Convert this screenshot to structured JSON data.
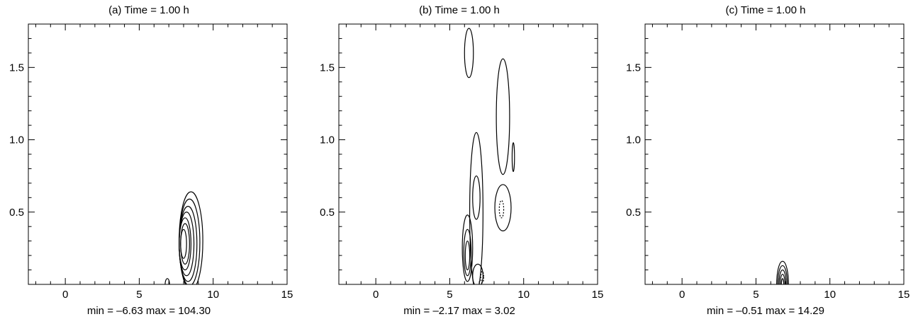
{
  "panels": [
    {
      "title": "(a) Time = 1.00 h",
      "footer": "min = –6.63 max = 104.30"
    },
    {
      "title": "(b) Time = 1.00 h",
      "footer": "min = –2.17 max = 3.02"
    },
    {
      "title": "(c) Time = 1.00 h",
      "footer": "min = –0.51 max = 14.29"
    }
  ],
  "chart_data": [
    {
      "type": "contour",
      "title": "(a) Time = 1.00 h",
      "annotation": "min = –6.63 max = 104.30",
      "xlim": [
        -2.5,
        15
      ],
      "ylim": [
        0,
        1.8
      ],
      "x_ticks": [
        "0",
        "5",
        "10",
        "15"
      ],
      "y_ticks": [
        "0.5",
        "1.0",
        "1.5"
      ],
      "contours": [
        {
          "cx": 8.5,
          "cy": 0.3,
          "rx": 0.8,
          "ry": 0.34,
          "dashed": false
        },
        {
          "cx": 8.4,
          "cy": 0.29,
          "rx": 0.7,
          "ry": 0.3,
          "dashed": false
        },
        {
          "cx": 8.3,
          "cy": 0.28,
          "rx": 0.6,
          "ry": 0.26,
          "dashed": false
        },
        {
          "cx": 8.2,
          "cy": 0.28,
          "rx": 0.5,
          "ry": 0.22,
          "dashed": false
        },
        {
          "cx": 8.1,
          "cy": 0.28,
          "rx": 0.4,
          "ry": 0.18,
          "dashed": false
        },
        {
          "cx": 8.1,
          "cy": 0.28,
          "rx": 0.3,
          "ry": 0.14,
          "dashed": false
        },
        {
          "cx": 8.0,
          "cy": 0.28,
          "rx": 0.2,
          "ry": 0.1,
          "dashed": false
        },
        {
          "cx": 6.9,
          "cy": 0.0,
          "rx": 0.15,
          "ry": 0.04,
          "dashed": false
        }
      ]
    },
    {
      "type": "contour",
      "title": "(b) Time = 1.00 h",
      "annotation": "min = –2.17 max = 3.02",
      "xlim": [
        -2.5,
        15
      ],
      "ylim": [
        0,
        1.8
      ],
      "x_ticks": [
        "0",
        "5",
        "10",
        "15"
      ],
      "y_ticks": [
        "0.5",
        "1.0",
        "1.5"
      ],
      "contours": [
        {
          "cx": 6.3,
          "cy": 1.6,
          "rx": 0.3,
          "ry": 0.17,
          "dashed": false
        },
        {
          "cx": 8.6,
          "cy": 1.16,
          "rx": 0.45,
          "ry": 0.4,
          "dashed": false
        },
        {
          "cx": 9.3,
          "cy": 0.88,
          "rx": 0.08,
          "ry": 0.1,
          "dashed": false
        },
        {
          "cx": 8.6,
          "cy": 0.53,
          "rx": 0.55,
          "ry": 0.16,
          "dashed": false
        },
        {
          "cx": 8.5,
          "cy": 0.52,
          "rx": 0.15,
          "ry": 0.06,
          "dashed": true
        },
        {
          "cx": 6.8,
          "cy": 0.5,
          "rx": 0.45,
          "ry": 0.55,
          "dashed": false
        },
        {
          "cx": 6.8,
          "cy": 0.6,
          "rx": 0.25,
          "ry": 0.15,
          "dashed": false
        },
        {
          "cx": 6.2,
          "cy": 0.25,
          "rx": 0.35,
          "ry": 0.23,
          "dashed": false
        },
        {
          "cx": 6.2,
          "cy": 0.22,
          "rx": 0.25,
          "ry": 0.16,
          "dashed": false
        },
        {
          "cx": 6.2,
          "cy": 0.2,
          "rx": 0.15,
          "ry": 0.1,
          "dashed": false
        },
        {
          "cx": 6.9,
          "cy": 0.06,
          "rx": 0.35,
          "ry": 0.08,
          "dashed": false
        },
        {
          "cx": 7.2,
          "cy": 0.05,
          "rx": 0.1,
          "ry": 0.04,
          "dashed": true
        }
      ]
    },
    {
      "type": "contour",
      "title": "(c) Time = 1.00 h",
      "annotation": "min = –0.51 max = 14.29",
      "xlim": [
        -2.5,
        15
      ],
      "ylim": [
        0,
        1.8
      ],
      "x_ticks": [
        "0",
        "5",
        "10",
        "15"
      ],
      "y_ticks": [
        "0.5",
        "1.0",
        "1.5"
      ],
      "contours": [
        {
          "cx": 6.8,
          "cy": 0.0,
          "rx": 0.4,
          "ry": 0.16,
          "dashed": false
        },
        {
          "cx": 6.8,
          "cy": 0.0,
          "rx": 0.32,
          "ry": 0.13,
          "dashed": false
        },
        {
          "cx": 6.8,
          "cy": 0.0,
          "rx": 0.24,
          "ry": 0.1,
          "dashed": false
        },
        {
          "cx": 6.8,
          "cy": 0.0,
          "rx": 0.16,
          "ry": 0.07,
          "dashed": false
        },
        {
          "cx": 6.8,
          "cy": 0.0,
          "rx": 0.08,
          "ry": 0.04,
          "dashed": false
        }
      ]
    }
  ]
}
